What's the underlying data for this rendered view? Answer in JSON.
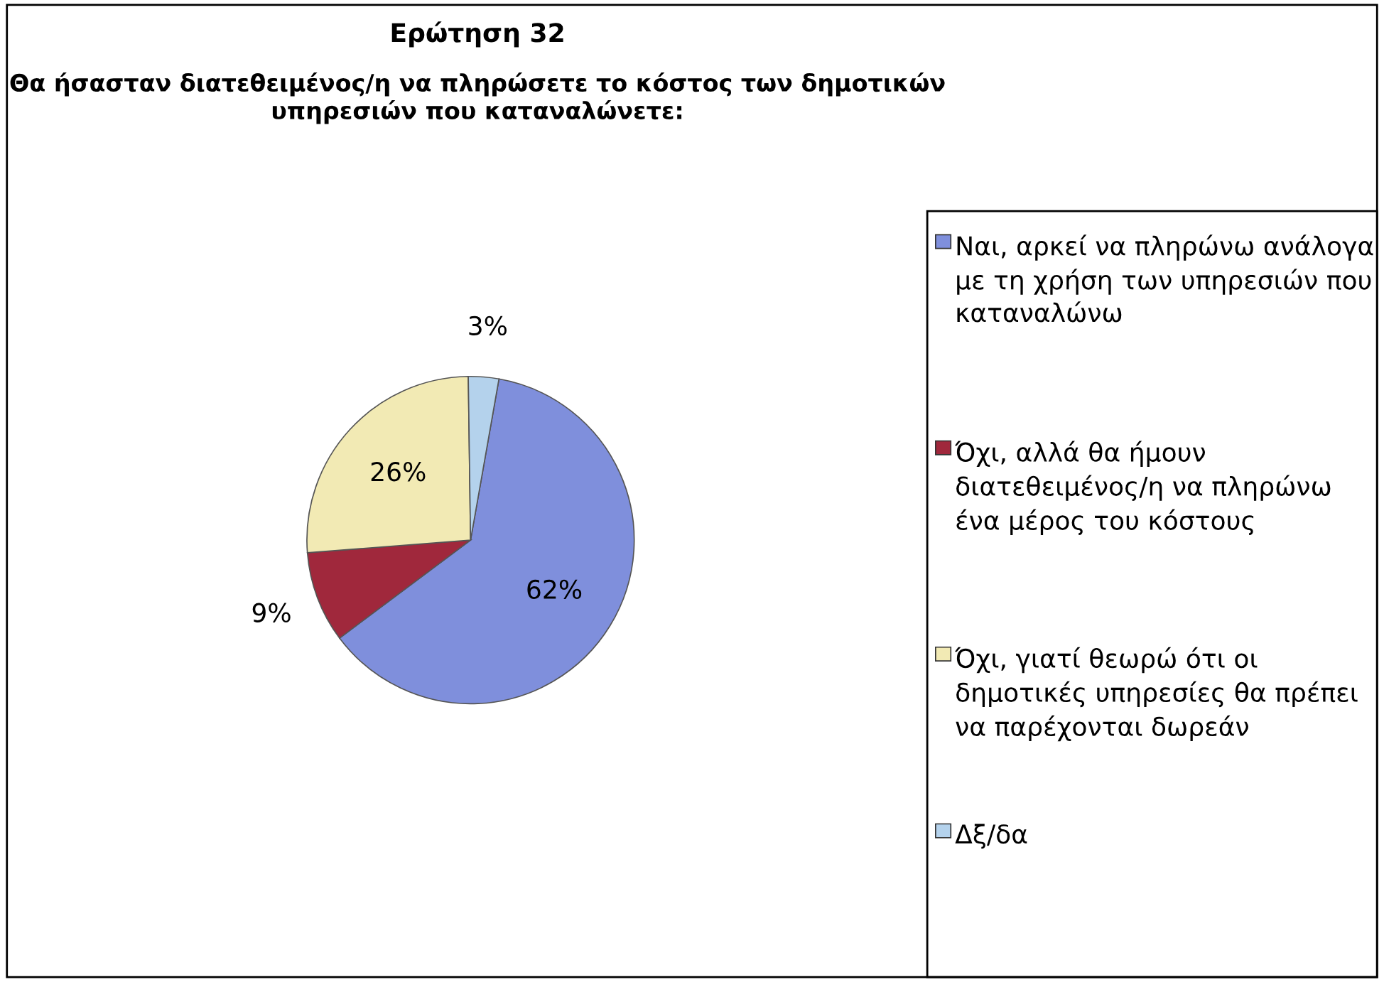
{
  "chart_data": {
    "type": "pie",
    "title": "Ερώτηση 32",
    "subtitle": "Θα ήσασταν διατεθειμένος/η να πληρώσετε το κόστος των δημοτικών υπηρεσιών που καταναλώνετε:",
    "categories": [
      "Ναι, αρκεί να πληρώνω ανάλογα με τη χρήση των υπηρεσιών που καταναλώνω",
      "Όχι, αλλά θα ήμουν διατεθειμένος/η να πληρώνω ένα μέρος του κόστους",
      "Όχι, γιατί θεωρώ ότι οι δημοτικές υπηρεσίες θα πρέπει να παρέχονται δωρεάν",
      "Δξ/δα"
    ],
    "values": [
      62,
      9,
      26,
      3
    ],
    "value_labels": [
      "62%",
      "9%",
      "26%",
      "3%"
    ],
    "colors": [
      "#7f8fdc",
      "#a0283c",
      "#f2eab4",
      "#b4d2ec"
    ],
    "legend": "right"
  }
}
